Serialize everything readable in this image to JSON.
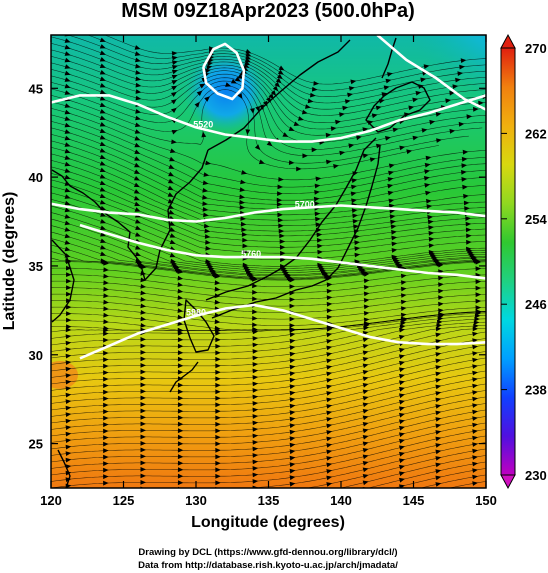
{
  "chart_data": {
    "type": "heatmap",
    "title": "MSM 09Z18Apr2023 (500.0hPa)",
    "xlabel": "Longitude (degrees)",
    "ylabel": "Latitude  (degrees)",
    "xlim": [
      120,
      150
    ],
    "ylim": [
      22.5,
      48
    ],
    "xticks": [
      120,
      125,
      130,
      135,
      140,
      145,
      150
    ],
    "yticks": [
      25,
      30,
      35,
      40,
      45
    ],
    "colorbar": {
      "ticks": [
        230,
        238,
        246,
        254,
        262,
        270
      ],
      "range": [
        230,
        270
      ],
      "colors": [
        "#c000c0",
        "#5010e0",
        "#1040ff",
        "#00a0ff",
        "#00d8e0",
        "#20d080",
        "#30c830",
        "#90d820",
        "#d8d810",
        "#f0b010",
        "#f08010",
        "#e02010"
      ]
    },
    "contour_labels": [
      {
        "text": "5880",
        "lon": 130.0,
        "lat": 32.2
      },
      {
        "text": "5700",
        "lon": 137.5,
        "lat": 38.3
      },
      {
        "text": "5760",
        "lon": 133.8,
        "lat": 35.5
      },
      {
        "text": "5520",
        "lon": 130.5,
        "lat": 42.8
      }
    ],
    "contours": [
      {
        "name": "5400",
        "lon": [
          142.5,
          144.5,
          146.5,
          148.5,
          150
        ],
        "lat": [
          48,
          46.6,
          45.6,
          44.4,
          43.8
        ]
      },
      {
        "name": "5520",
        "lon": [
          120,
          122,
          124,
          126,
          128,
          130,
          132,
          134,
          136,
          138,
          140,
          142,
          144,
          146,
          148,
          150
        ],
        "lat": [
          44.2,
          44.6,
          44.6,
          44.1,
          43.4,
          42.8,
          42.4,
          42.2,
          42.0,
          42.0,
          42.2,
          42.6,
          43.2,
          43.6,
          44.1,
          44.6
        ]
      },
      {
        "name": "5700",
        "lon": [
          120,
          122,
          124,
          126,
          128,
          130,
          132,
          134,
          136,
          138,
          140,
          142,
          144,
          146,
          148,
          150
        ],
        "lat": [
          38.5,
          38.2,
          38.0,
          37.9,
          37.6,
          37.5,
          37.7,
          38.0,
          38.2,
          38.3,
          38.4,
          38.3,
          38.2,
          38.1,
          38.0,
          37.8
        ]
      },
      {
        "name": "5760",
        "lon": [
          122,
          124,
          126,
          128,
          130,
          132,
          134,
          136,
          138,
          140,
          142,
          144,
          146,
          148,
          150
        ],
        "lat": [
          37.3,
          36.8,
          36.3,
          35.9,
          35.6,
          35.5,
          35.5,
          35.5,
          35.4,
          35.2,
          35.0,
          34.8,
          34.6,
          34.5,
          34.3
        ]
      },
      {
        "name": "5880",
        "lon": [
          122,
          124,
          126,
          128,
          130,
          132,
          134,
          136,
          138,
          140,
          142,
          144,
          146,
          148,
          150
        ],
        "lat": [
          29.8,
          30.5,
          31.2,
          31.7,
          32.2,
          32.6,
          32.8,
          32.5,
          32.0,
          31.5,
          31.0,
          30.7,
          30.6,
          30.6,
          30.7
        ]
      },
      {
        "name": "low",
        "lon": [
          130.5,
          131.2,
          132.0,
          132.8,
          133.3,
          133.2,
          132.5,
          131.5,
          130.7,
          130.5
        ],
        "lat": [
          46.2,
          47.2,
          47.5,
          47.0,
          46.0,
          45.0,
          44.4,
          44.7,
          45.3,
          46.2
        ]
      }
    ],
    "grid": false,
    "credits": [
      "Drawing by DCL (https://www.gfd-dennou.org/library/dcl/)",
      "Data from http://database.rish.kyoto-u.ac.jp/arch/jmadata/"
    ]
  }
}
